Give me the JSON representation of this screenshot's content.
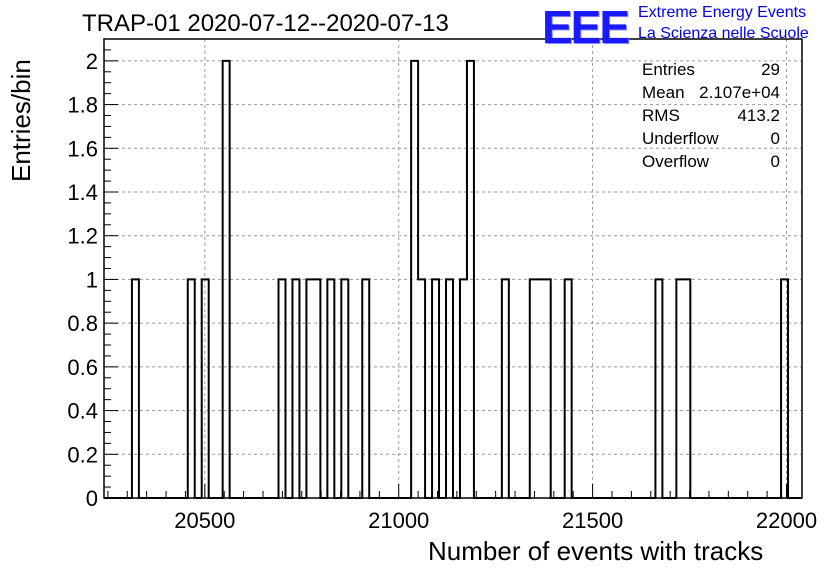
{
  "chart_data": {
    "type": "bar",
    "title": "TRAP-01 2020-07-12--2020-07-13",
    "xlabel": "Number of events with tracks",
    "ylabel": "Entries/bin",
    "xlim": [
      20240,
      22040
    ],
    "ylim": [
      0,
      2.1
    ],
    "bin_width": 18,
    "xticks": [
      20500,
      21000,
      21500,
      22000
    ],
    "yticks": [
      0,
      0.2,
      0.4,
      0.6,
      0.8,
      1,
      1.2,
      1.4,
      1.6,
      1.8,
      2
    ],
    "grid": true,
    "bins": [
      {
        "x": 20312,
        "count": 1
      },
      {
        "x": 20456,
        "count": 1
      },
      {
        "x": 20492,
        "count": 1
      },
      {
        "x": 20546,
        "count": 2
      },
      {
        "x": 20690,
        "count": 1
      },
      {
        "x": 20726,
        "count": 1
      },
      {
        "x": 20762,
        "count": 1
      },
      {
        "x": 20780,
        "count": 1
      },
      {
        "x": 20816,
        "count": 1
      },
      {
        "x": 20852,
        "count": 1
      },
      {
        "x": 20906,
        "count": 1
      },
      {
        "x": 21032,
        "count": 2
      },
      {
        "x": 21050,
        "count": 1
      },
      {
        "x": 21086,
        "count": 1
      },
      {
        "x": 21122,
        "count": 1
      },
      {
        "x": 21158,
        "count": 1
      },
      {
        "x": 21176,
        "count": 2
      },
      {
        "x": 21266,
        "count": 1
      },
      {
        "x": 21338,
        "count": 1
      },
      {
        "x": 21356,
        "count": 1
      },
      {
        "x": 21374,
        "count": 1
      },
      {
        "x": 21428,
        "count": 1
      },
      {
        "x": 21662,
        "count": 1
      },
      {
        "x": 21716,
        "count": 1
      },
      {
        "x": 21734,
        "count": 1
      },
      {
        "x": 21986,
        "count": 1
      }
    ],
    "stats": [
      {
        "label": "Entries",
        "value": "29"
      },
      {
        "label": "Mean",
        "value": "2.107e+04"
      },
      {
        "label": "RMS",
        "value": "413.2"
      },
      {
        "label": "Underflow",
        "value": "0"
      },
      {
        "label": "Overflow",
        "value": "0"
      }
    ],
    "line_color": "#000000",
    "grid_color": "#9a9a9a"
  },
  "logo": {
    "text": "EEE",
    "line1": "Extreme Energy Events",
    "line2": "La Scienza nelle Scuole",
    "color": "#1a1aff"
  }
}
